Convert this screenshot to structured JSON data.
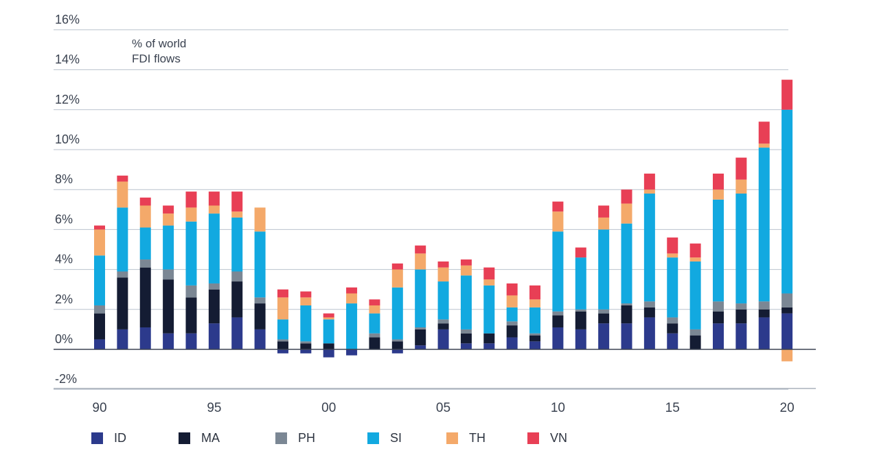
{
  "chart_data": {
    "type": "bar",
    "stacked": true,
    "unit_label": [
      "% of world",
      "FDI flows"
    ],
    "ylim": [
      -2,
      16
    ],
    "yticks": [
      -2,
      0,
      2,
      4,
      6,
      8,
      10,
      12,
      14,
      16
    ],
    "ytick_labels": [
      "-2%",
      "0%",
      "2%",
      "4%",
      "6%",
      "8%",
      "10%",
      "12%",
      "14%",
      "16%"
    ],
    "categories": [
      "1990",
      "1991",
      "1992",
      "1993",
      "1994",
      "1995",
      "1996",
      "1997",
      "1998",
      "1999",
      "2000",
      "2001",
      "2002",
      "2003",
      "2004",
      "2005",
      "2006",
      "2007",
      "2008",
      "2009",
      "2010",
      "2011",
      "2012",
      "2013",
      "2014",
      "2015",
      "2016",
      "2017",
      "2018",
      "2019",
      "2020"
    ],
    "xtick_labels": [
      "90",
      "95",
      "00",
      "05",
      "10",
      "15",
      "20"
    ],
    "series": [
      {
        "name": "ID",
        "color": "#2c3a8c",
        "values": [
          0.5,
          1.0,
          1.1,
          0.8,
          0.8,
          1.3,
          1.6,
          1.0,
          -0.2,
          -0.2,
          -0.4,
          -0.3,
          0.0,
          -0.2,
          0.2,
          1.0,
          0.3,
          0.3,
          0.6,
          0.4,
          1.1,
          1.0,
          1.3,
          1.3,
          1.6,
          0.8,
          0.0,
          1.3,
          1.3,
          1.6,
          1.8
        ]
      },
      {
        "name": "MA",
        "color": "#141c33",
        "values": [
          1.3,
          2.6,
          3.0,
          2.7,
          1.8,
          1.7,
          1.8,
          1.3,
          0.4,
          0.3,
          0.3,
          0.0,
          0.6,
          0.4,
          0.8,
          0.3,
          0.5,
          0.5,
          0.6,
          0.3,
          0.6,
          0.9,
          0.5,
          0.9,
          0.5,
          0.5,
          0.7,
          0.6,
          0.7,
          0.4,
          0.3
        ]
      },
      {
        "name": "PH",
        "color": "#7b8794",
        "values": [
          0.4,
          0.3,
          0.4,
          0.5,
          0.6,
          0.3,
          0.5,
          0.3,
          0.1,
          0.1,
          0.0,
          0.0,
          0.2,
          0.1,
          0.1,
          0.2,
          0.2,
          0.0,
          0.2,
          0.1,
          0.2,
          0.1,
          0.2,
          0.1,
          0.3,
          0.3,
          0.3,
          0.5,
          0.3,
          0.4,
          0.7
        ]
      },
      {
        "name": "SI",
        "color": "#12a9e0",
        "values": [
          2.5,
          3.2,
          1.6,
          2.2,
          3.2,
          3.5,
          2.7,
          3.3,
          1.0,
          1.8,
          1.2,
          2.3,
          1.0,
          2.6,
          2.9,
          1.9,
          2.7,
          2.4,
          0.7,
          1.3,
          4.0,
          2.6,
          4.0,
          4.0,
          5.4,
          3.0,
          3.4,
          5.1,
          5.5,
          7.7,
          9.2
        ]
      },
      {
        "name": "TH",
        "color": "#f4a96a",
        "values": [
          1.3,
          1.3,
          1.1,
          0.6,
          0.7,
          0.4,
          0.3,
          1.2,
          1.1,
          0.4,
          0.1,
          0.5,
          0.4,
          0.9,
          0.8,
          0.7,
          0.5,
          0.3,
          0.6,
          0.4,
          1.0,
          0.0,
          0.6,
          1.0,
          0.2,
          0.2,
          0.2,
          0.5,
          0.7,
          0.2,
          -0.6
        ]
      },
      {
        "name": "VN",
        "color": "#e83f55",
        "values": [
          0.2,
          0.3,
          0.4,
          0.4,
          0.8,
          0.7,
          1.0,
          0.0,
          0.4,
          0.3,
          0.2,
          0.3,
          0.3,
          0.3,
          0.4,
          0.3,
          0.3,
          0.6,
          0.6,
          0.7,
          0.5,
          0.5,
          0.6,
          0.7,
          0.8,
          0.8,
          0.7,
          0.8,
          1.1,
          1.1,
          1.5
        ]
      }
    ]
  }
}
